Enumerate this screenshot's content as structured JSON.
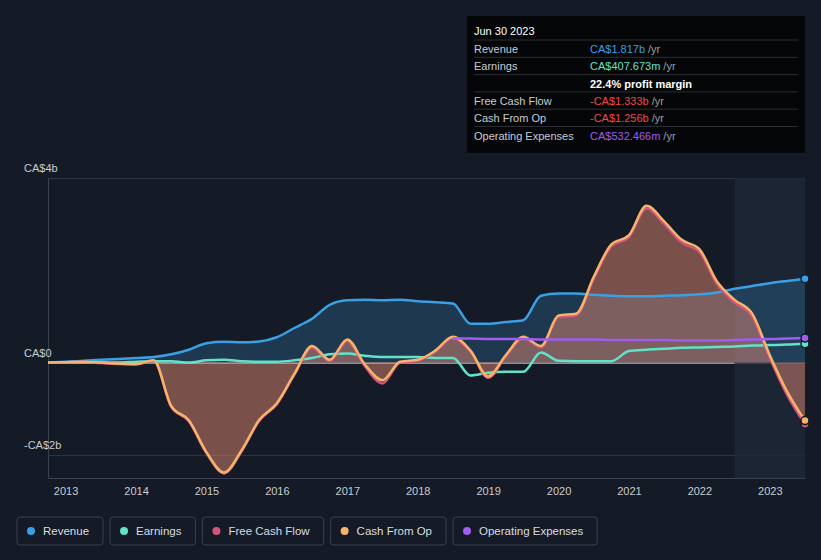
{
  "chart_data": {
    "type": "line",
    "x": [
      2012.75,
      2013,
      2013.25,
      2013.5,
      2013.75,
      2014,
      2014.25,
      2014.5,
      2014.75,
      2015,
      2015.25,
      2015.5,
      2015.75,
      2016,
      2016.25,
      2016.5,
      2016.75,
      2017,
      2017.25,
      2017.5,
      2017.75,
      2018,
      2018.25,
      2018.5,
      2018.75,
      2019,
      2019.25,
      2019.5,
      2019.75,
      2020,
      2020.25,
      2020.5,
      2020.75,
      2021,
      2021.25,
      2021.5,
      2021.75,
      2022,
      2022.25,
      2022.5,
      2022.75,
      2023,
      2023.25,
      2023.5
    ],
    "xlim": [
      2012.75,
      2023.5
    ],
    "xticks": [
      2013,
      2014,
      2015,
      2016,
      2017,
      2018,
      2019,
      2020,
      2021,
      2022,
      2023
    ],
    "ylim": [
      -2.5,
      4
    ],
    "yticks": [
      {
        "value": 4,
        "label": "CA$4b"
      },
      {
        "value": 0,
        "label": "CA$0"
      },
      {
        "value": -2,
        "label": "-CA$2b"
      }
    ],
    "grid": true,
    "legend": "bottom",
    "series": [
      {
        "name": "Revenue",
        "color": "#3a9fe3",
        "type": "area",
        "values": [
          0.0,
          0.02,
          0.04,
          0.06,
          0.08,
          0.1,
          0.12,
          0.18,
          0.28,
          0.42,
          0.45,
          0.44,
          0.46,
          0.55,
          0.75,
          0.95,
          1.25,
          1.35,
          1.36,
          1.35,
          1.36,
          1.33,
          1.31,
          1.28,
          0.84,
          0.84,
          0.88,
          0.92,
          1.45,
          1.5,
          1.5,
          1.47,
          1.45,
          1.44,
          1.44,
          1.45,
          1.46,
          1.48,
          1.52,
          1.6,
          1.66,
          1.72,
          1.77,
          1.817
        ]
      },
      {
        "name": "Earnings",
        "color": "#62e3c9",
        "type": "line",
        "values": [
          0.0,
          0.01,
          0.01,
          0.0,
          0.0,
          0.02,
          0.03,
          0.03,
          0.0,
          0.05,
          0.06,
          0.03,
          0.02,
          0.02,
          0.05,
          0.1,
          0.18,
          0.2,
          0.15,
          0.12,
          0.12,
          0.12,
          0.1,
          0.1,
          -0.28,
          -0.22,
          -0.2,
          -0.2,
          0.22,
          0.04,
          0.03,
          0.03,
          0.03,
          0.25,
          0.28,
          0.3,
          0.32,
          0.33,
          0.34,
          0.35,
          0.37,
          0.38,
          0.39,
          0.408
        ]
      },
      {
        "name": "Free Cash Flow",
        "color": "#d4537e",
        "type": "area",
        "values": [
          0.0,
          0.01,
          0.02,
          -0.01,
          -0.03,
          -0.04,
          0.04,
          -0.96,
          -1.27,
          -1.96,
          -2.4,
          -1.92,
          -1.26,
          -0.9,
          -0.26,
          0.33,
          0.03,
          0.47,
          -0.08,
          -0.45,
          0.0,
          0.04,
          0.24,
          0.54,
          0.24,
          -0.33,
          0.13,
          0.53,
          0.33,
          0.98,
          1.02,
          1.82,
          2.52,
          2.72,
          3.34,
          3.0,
          2.6,
          2.4,
          1.7,
          1.3,
          1.0,
          0.1,
          -0.71,
          -1.333
        ]
      },
      {
        "name": "Cash From Op",
        "color": "#f5b46a",
        "type": "area",
        "values": [
          0.0,
          0.01,
          0.02,
          0.0,
          -0.02,
          -0.03,
          0.05,
          -0.94,
          -1.25,
          -1.94,
          -2.38,
          -1.9,
          -1.24,
          -0.88,
          -0.24,
          0.36,
          0.06,
          0.5,
          -0.04,
          -0.38,
          0.02,
          0.06,
          0.26,
          0.56,
          0.26,
          -0.3,
          0.16,
          0.56,
          0.36,
          1.02,
          1.06,
          1.86,
          2.56,
          2.76,
          3.4,
          3.06,
          2.66,
          2.46,
          1.76,
          1.36,
          1.06,
          0.16,
          -0.64,
          -1.256
        ]
      },
      {
        "name": "Operating Expenses",
        "color": "#a25cf0",
        "type": "line",
        "values": [
          null,
          null,
          null,
          null,
          null,
          null,
          null,
          null,
          null,
          null,
          null,
          null,
          null,
          null,
          null,
          null,
          null,
          null,
          null,
          null,
          null,
          null,
          null,
          0.52,
          0.52,
          0.51,
          0.51,
          0.51,
          0.5,
          0.5,
          0.5,
          0.5,
          0.49,
          0.49,
          0.49,
          0.49,
          0.48,
          0.48,
          0.48,
          0.49,
          0.5,
          0.51,
          0.52,
          0.532
        ]
      }
    ],
    "annotation": {
      "title": "Jun 30 2023",
      "rows": [
        {
          "label": "Revenue",
          "value": "CA$1.817b",
          "unit": "/yr",
          "color": "#3a9fe3"
        },
        {
          "label": "Earnings",
          "value": "CA$407.673m",
          "unit": "/yr",
          "color": "#62e3c9"
        },
        {
          "value": "22.4% profit margin",
          "color": "#ffffff"
        },
        {
          "label": "Free Cash Flow",
          "value": "-CA$1.333b",
          "unit": "/yr",
          "color": "#f0484f"
        },
        {
          "label": "Cash From Op",
          "value": "-CA$1.256b",
          "unit": "/yr",
          "color": "#f0484f"
        },
        {
          "label": "Operating Expenses",
          "value": "CA$532.466m",
          "unit": "/yr",
          "color": "#a25cf0"
        }
      ]
    }
  }
}
